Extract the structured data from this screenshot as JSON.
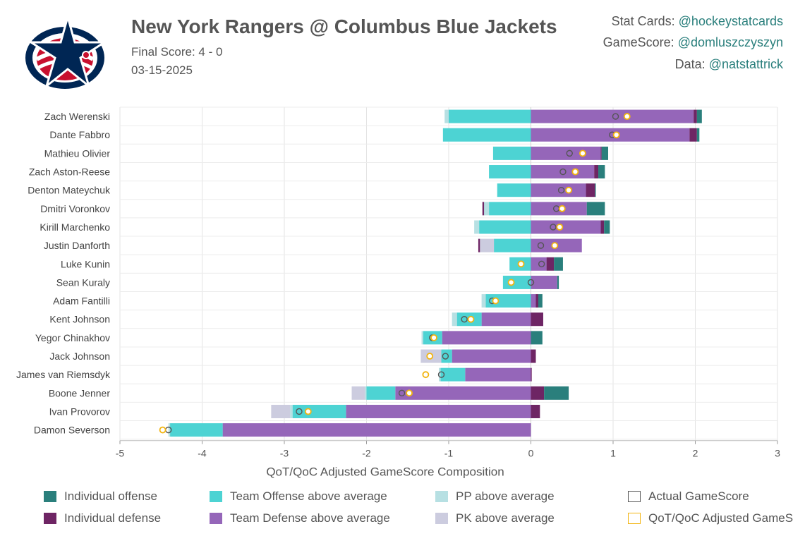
{
  "header": {
    "title": "New York Rangers @ Columbus Blue Jackets",
    "final_score": "Final Score: 4 - 0",
    "date": "03-15-2025",
    "credits": [
      {
        "label": "Stat Cards:",
        "handle": "@hockeystatcards"
      },
      {
        "label": "GameScore:",
        "handle": "@domluszczyszyn"
      },
      {
        "label": "Data:",
        "handle": "@natstattrick"
      }
    ]
  },
  "colors": {
    "ind_off": "#2a7f7c",
    "ind_def": "#6e2564",
    "team_off": "#4dd3d3",
    "team_def": "#9566b9",
    "pp": "#b7e0e3",
    "pk": "#ccccdf",
    "actual": "#555555",
    "adjusted": "#f2b40f"
  },
  "chart_data": {
    "type": "bar",
    "orientation": "horizontal-stacked",
    "xlabel": "QoT/QoC Adjusted GameScore Composition",
    "xlim": [
      -5,
      3
    ],
    "xticks": [
      -5,
      -4,
      -3,
      -2,
      -1,
      0,
      1,
      2,
      3
    ],
    "grid": true,
    "components": [
      "ind_off",
      "ind_def",
      "team_off",
      "team_def",
      "pp",
      "pk"
    ],
    "players": [
      {
        "name": "Zach Werenski",
        "ind_off": 0.06,
        "ind_def": 0.04,
        "team_off": -1.0,
        "team_def": 1.98,
        "pp": -0.05,
        "pk": 0,
        "actual": 1.03,
        "adjusted": 1.17
      },
      {
        "name": "Dante Fabbro",
        "ind_off": 0.03,
        "ind_def": 0.09,
        "team_off": -1.07,
        "team_def": 1.93,
        "pp": 0,
        "pk": 0,
        "actual": 0.99,
        "adjusted": 1.04
      },
      {
        "name": "Mathieu Olivier",
        "ind_off": 0.08,
        "ind_def": 0.01,
        "team_off": -0.46,
        "team_def": 0.85,
        "pp": 0,
        "pk": 0,
        "actual": 0.47,
        "adjusted": 0.63
      },
      {
        "name": "Zach Aston-Reese",
        "ind_off": 0.08,
        "ind_def": 0.05,
        "team_off": -0.51,
        "team_def": 0.77,
        "pp": 0,
        "pk": 0,
        "actual": 0.39,
        "adjusted": 0.54
      },
      {
        "name": "Denton Mateychuk",
        "ind_off": 0.01,
        "ind_def": 0.11,
        "team_off": -0.41,
        "team_def": 0.67,
        "pp": 0,
        "pk": 0,
        "actual": 0.37,
        "adjusted": 0.46
      },
      {
        "name": "Dmitri Voronkov",
        "ind_off": 0.22,
        "ind_def": -0.02,
        "team_off": -0.51,
        "team_def": 0.68,
        "pp": -0.06,
        "pk": 0,
        "actual": 0.31,
        "adjusted": 0.38
      },
      {
        "name": "Kirill Marchenko",
        "ind_off": 0.07,
        "ind_def": 0.04,
        "team_off": -0.63,
        "team_def": 0.85,
        "pp": -0.06,
        "pk": 0,
        "actual": 0.27,
        "adjusted": 0.35
      },
      {
        "name": "Justin Danforth",
        "ind_off": 0,
        "ind_def": -0.02,
        "team_off": -0.45,
        "team_def": 0.62,
        "pp": 0,
        "pk": -0.17,
        "actual": 0.12,
        "adjusted": 0.29
      },
      {
        "name": "Luke Kunin",
        "ind_off": 0.11,
        "ind_def": 0.09,
        "team_off": -0.26,
        "team_def": 0.19,
        "pp": 0,
        "pk": 0,
        "actual": 0.13,
        "adjusted": -0.12
      },
      {
        "name": "Sean Kuraly",
        "ind_off": 0.02,
        "ind_def": 0,
        "team_off": -0.34,
        "team_def": 0.32,
        "pp": 0,
        "pk": 0,
        "actual": 0.0,
        "adjusted": -0.24
      },
      {
        "name": "Adam Fantilli",
        "ind_off": 0.05,
        "ind_def": 0.03,
        "team_off": -0.55,
        "team_def": 0.06,
        "pp": -0.05,
        "pk": 0,
        "actual": -0.47,
        "adjusted": -0.43
      },
      {
        "name": "Kent Johnson",
        "ind_off": 0,
        "ind_def": 0.15,
        "team_off": -0.3,
        "team_def": -0.6,
        "pp": -0.06,
        "pk": 0,
        "actual": -0.81,
        "adjusted": -0.73
      },
      {
        "name": "Yegor Chinakhov",
        "ind_off": 0.14,
        "ind_def": 0,
        "team_off": -0.23,
        "team_def": -1.08,
        "pp": -0.02,
        "pk": 0,
        "actual": -1.2,
        "adjusted": -1.18
      },
      {
        "name": "Jack Johnson",
        "ind_off": 0,
        "ind_def": 0.06,
        "team_off": -0.13,
        "team_def": -0.96,
        "pp": 0,
        "pk": -0.25,
        "actual": -1.04,
        "adjusted": -1.23
      },
      {
        "name": "James van Riemsdyk",
        "ind_off": 0,
        "ind_def": 0.01,
        "team_off": -0.3,
        "team_def": -0.8,
        "pp": -0.02,
        "pk": 0,
        "actual": -1.09,
        "adjusted": -1.28
      },
      {
        "name": "Boone Jenner",
        "ind_off": 0.3,
        "ind_def": 0.16,
        "team_off": -0.35,
        "team_def": -1.65,
        "pp": -0.02,
        "pk": -0.16,
        "actual": -1.57,
        "adjusted": -1.48
      },
      {
        "name": "Ivan Provorov",
        "ind_off": 0,
        "ind_def": 0.11,
        "team_off": -0.65,
        "team_def": -2.25,
        "pp": -0.03,
        "pk": -0.23,
        "actual": -2.82,
        "adjusted": -2.71
      },
      {
        "name": "Damon Severson",
        "ind_off": 0,
        "ind_def": 0,
        "team_off": -0.64,
        "team_def": -3.75,
        "pp": -0.02,
        "pk": 0,
        "actual": -4.41,
        "adjusted": -4.48
      }
    ]
  },
  "legend": [
    {
      "key": "ind_off",
      "label": "Individual offense",
      "style": "fill"
    },
    {
      "key": "team_off",
      "label": "Team Offense above average",
      "style": "fill"
    },
    {
      "key": "pp",
      "label": "PP above average",
      "style": "fill"
    },
    {
      "key": "actual",
      "label": "Actual GameScore",
      "style": "outline"
    },
    {
      "key": "ind_def",
      "label": "Individual defense",
      "style": "fill"
    },
    {
      "key": "team_def",
      "label": "Team Defense above average",
      "style": "fill"
    },
    {
      "key": "pk",
      "label": "PK above average",
      "style": "fill"
    },
    {
      "key": "adjusted",
      "label": "QoT/QoC Adjusted GameScore",
      "style": "outline"
    }
  ]
}
